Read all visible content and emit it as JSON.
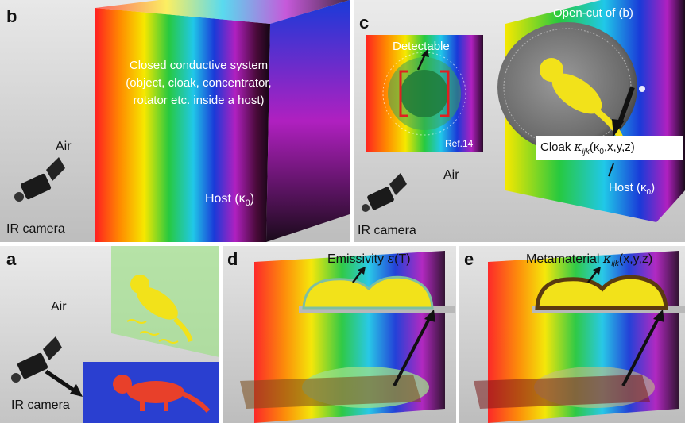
{
  "panel_b": {
    "letter": "b",
    "air_label": "Air",
    "closed_system": [
      "Closed conductive system",
      "(object, cloak, concentrator,",
      "rotator etc. inside a host)"
    ],
    "host_label": "Host (κ",
    "host_sub": "0",
    "host_close": ")",
    "camera_label": "IR camera"
  },
  "panel_c": {
    "letter": "c",
    "detectable_label": "Detectable",
    "ref_label": "Ref.14",
    "opencut_label": "Open-cut of (b)",
    "cloak_prefix": "Cloak ",
    "cloak_kappa": "κ",
    "cloak_sub": "ijk",
    "cloak_args_open": "(κ",
    "cloak_args_sub": "0",
    "cloak_args_rest": ",x,y,z)",
    "air_label": "Air",
    "host_label": "Host (κ",
    "host_sub": "0",
    "host_close": ")",
    "camera_label": "IR camera"
  },
  "panel_a": {
    "letter": "a",
    "air_label": "Air",
    "camera_label": "IR camera"
  },
  "panel_d": {
    "letter": "d",
    "emissivity_label": "Emissivity ",
    "emissivity_symbol": "ε",
    "emissivity_args": "(T)"
  },
  "panel_e": {
    "letter": "e",
    "meta_label": "Metamaterial ",
    "meta_kappa": "κ",
    "meta_sub": "ijk",
    "meta_args": "(x,y,z)"
  },
  "colors": {
    "background_gray": "#d6d6d6",
    "yellow_object": "#f2e21a",
    "bracket_red": "#e02020",
    "thermal_blue": "#2a3fd0",
    "thermal_red": "#e8402a",
    "green_glow": "#9fe08a"
  }
}
